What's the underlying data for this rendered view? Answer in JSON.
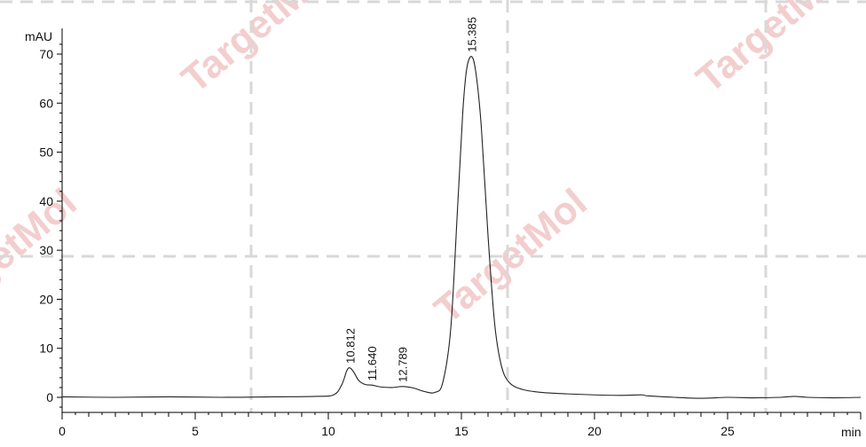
{
  "chart_data": {
    "type": "line",
    "title": "",
    "xlabel": "min",
    "ylabel": "mAU",
    "xlim": [
      0,
      30
    ],
    "ylim": [
      -3,
      74
    ],
    "x_ticks": [
      0,
      5,
      10,
      15,
      20,
      25
    ],
    "y_ticks": [
      0,
      10,
      20,
      30,
      40,
      50,
      60,
      70
    ],
    "series": [
      {
        "points": [
          [
            0,
            0.1
          ],
          [
            2,
            0.0
          ],
          [
            4,
            0.1
          ],
          [
            6,
            0.0
          ],
          [
            8,
            0.1
          ],
          [
            9.5,
            0.2
          ],
          [
            10.2,
            0.5
          ],
          [
            10.5,
            2.5
          ],
          [
            10.7,
            5.5
          ],
          [
            10.812,
            6.0
          ],
          [
            10.95,
            5.2
          ],
          [
            11.15,
            3.4
          ],
          [
            11.4,
            2.6
          ],
          [
            11.64,
            2.5
          ],
          [
            12.0,
            2.1
          ],
          [
            12.4,
            2.0
          ],
          [
            12.789,
            2.2
          ],
          [
            13.2,
            1.9
          ],
          [
            13.6,
            1.2
          ],
          [
            14.0,
            1.0
          ],
          [
            14.3,
            3.0
          ],
          [
            14.6,
            14.0
          ],
          [
            14.85,
            38.0
          ],
          [
            15.05,
            58.0
          ],
          [
            15.2,
            67.0
          ],
          [
            15.385,
            69.5
          ],
          [
            15.55,
            66.0
          ],
          [
            15.75,
            55.0
          ],
          [
            16.0,
            33.0
          ],
          [
            16.25,
            15.0
          ],
          [
            16.5,
            6.5
          ],
          [
            16.8,
            3.0
          ],
          [
            17.3,
            1.6
          ],
          [
            18,
            1.0
          ],
          [
            19,
            0.7
          ],
          [
            20,
            0.5
          ],
          [
            21,
            0.4
          ],
          [
            21.8,
            0.5
          ],
          [
            22,
            0.3
          ],
          [
            23,
            0.0
          ],
          [
            24,
            -0.2
          ],
          [
            25,
            0.0
          ],
          [
            26,
            -0.1
          ],
          [
            27,
            0.0
          ],
          [
            27.5,
            0.2
          ],
          [
            28,
            0.0
          ],
          [
            29,
            -0.1
          ],
          [
            30,
            0.0
          ]
        ]
      }
    ],
    "peak_labels": [
      {
        "x": 10.812,
        "y": 6.0,
        "text": "10.812"
      },
      {
        "x": 11.64,
        "y": 2.5,
        "text": "11.640"
      },
      {
        "x": 12.789,
        "y": 2.2,
        "text": "12.789"
      },
      {
        "x": 15.385,
        "y": 69.5,
        "text": "15.385"
      }
    ],
    "grid": "dashed",
    "colors": {
      "trace": "#222222",
      "axis": "#000000",
      "grid": "#d8d8d8",
      "watermark": "#f2c6c6"
    }
  },
  "watermark": {
    "text": "TargetMol"
  }
}
